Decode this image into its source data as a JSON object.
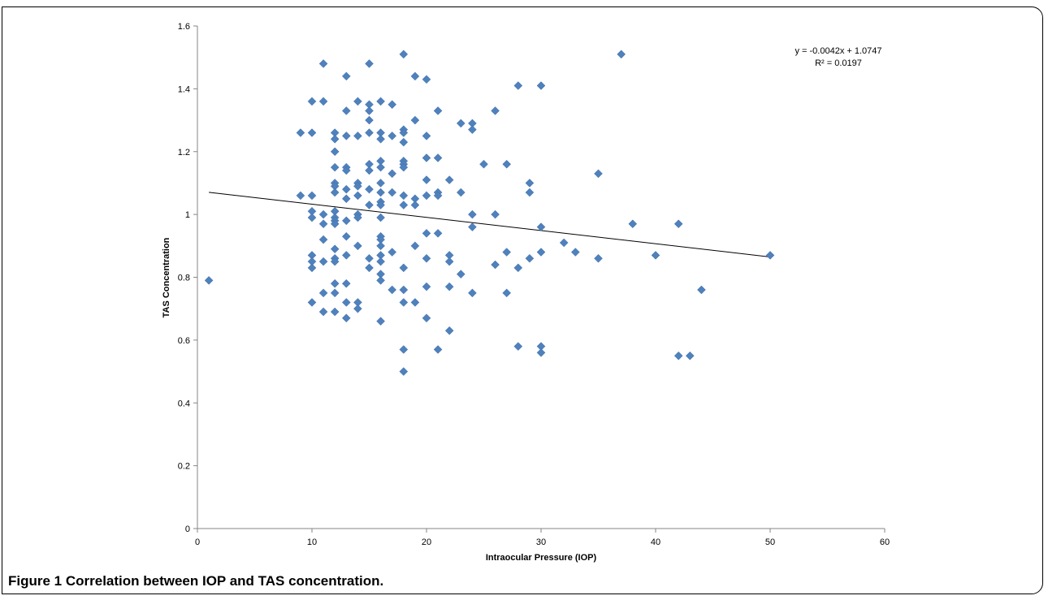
{
  "chart_data": {
    "type": "scatter",
    "xlabel": "Intraocular Pressure (IOP)",
    "ylabel": "TAS Concentration",
    "xlim": [
      0,
      60
    ],
    "ylim": [
      0,
      1.6
    ],
    "x_ticks": [
      "0",
      "10",
      "20",
      "30",
      "40",
      "50",
      "60"
    ],
    "y_ticks": [
      "0",
      "0.2",
      "0.4",
      "0.6",
      "0.8",
      "1",
      "1.2",
      "1.4",
      "1.6"
    ],
    "grid": false,
    "marker_color": "#4F81BD",
    "trendline": {
      "slope": -0.0042,
      "intercept": 1.0747,
      "x_range": [
        1,
        50
      ],
      "color": "#000000",
      "equation": "y = -0.0042x + 1.0747",
      "r_squared": "R² = 0.0197"
    },
    "points": [
      [
        1,
        0.79
      ],
      [
        9,
        1.26
      ],
      [
        9,
        1.06
      ],
      [
        10,
        1.36
      ],
      [
        10,
        1.26
      ],
      [
        10,
        1.06
      ],
      [
        10,
        1.01
      ],
      [
        10,
        0.99
      ],
      [
        10,
        0.87
      ],
      [
        10,
        0.85
      ],
      [
        10,
        0.83
      ],
      [
        10,
        0.72
      ],
      [
        11,
        1.48
      ],
      [
        11,
        1.36
      ],
      [
        11,
        1.0
      ],
      [
        11,
        0.97
      ],
      [
        11,
        0.92
      ],
      [
        11,
        0.85
      ],
      [
        11,
        0.75
      ],
      [
        11,
        0.69
      ],
      [
        12,
        1.26
      ],
      [
        12,
        1.24
      ],
      [
        12,
        1.2
      ],
      [
        12,
        1.15
      ],
      [
        12,
        1.1
      ],
      [
        12,
        1.09
      ],
      [
        12,
        1.07
      ],
      [
        12,
        1.01
      ],
      [
        12,
        0.99
      ],
      [
        12,
        0.98
      ],
      [
        12,
        0.97
      ],
      [
        12,
        0.89
      ],
      [
        12,
        0.86
      ],
      [
        12,
        0.85
      ],
      [
        12,
        0.78
      ],
      [
        12,
        0.75
      ],
      [
        12,
        0.69
      ],
      [
        13,
        1.44
      ],
      [
        13,
        1.33
      ],
      [
        13,
        1.25
      ],
      [
        13,
        1.15
      ],
      [
        13,
        1.14
      ],
      [
        13,
        1.08
      ],
      [
        13,
        1.05
      ],
      [
        13,
        0.98
      ],
      [
        13,
        0.93
      ],
      [
        13,
        0.87
      ],
      [
        13,
        0.78
      ],
      [
        13,
        0.72
      ],
      [
        13,
        0.67
      ],
      [
        14,
        1.36
      ],
      [
        14,
        1.25
      ],
      [
        14,
        1.1
      ],
      [
        14,
        1.09
      ],
      [
        14,
        1.06
      ],
      [
        14,
        1.0
      ],
      [
        14,
        0.99
      ],
      [
        14,
        0.9
      ],
      [
        14,
        0.72
      ],
      [
        14,
        0.7
      ],
      [
        15,
        1.48
      ],
      [
        15,
        1.35
      ],
      [
        15,
        1.33
      ],
      [
        15,
        1.3
      ],
      [
        15,
        1.26
      ],
      [
        15,
        1.16
      ],
      [
        15,
        1.14
      ],
      [
        15,
        1.08
      ],
      [
        15,
        1.03
      ],
      [
        15,
        0.86
      ],
      [
        15,
        0.83
      ],
      [
        16,
        1.36
      ],
      [
        16,
        1.26
      ],
      [
        16,
        1.24
      ],
      [
        16,
        1.17
      ],
      [
        16,
        1.15
      ],
      [
        16,
        1.1
      ],
      [
        16,
        1.07
      ],
      [
        16,
        1.04
      ],
      [
        16,
        1.03
      ],
      [
        16,
        0.99
      ],
      [
        16,
        0.93
      ],
      [
        16,
        0.92
      ],
      [
        16,
        0.9
      ],
      [
        16,
        0.87
      ],
      [
        16,
        0.85
      ],
      [
        16,
        0.81
      ],
      [
        16,
        0.79
      ],
      [
        16,
        0.66
      ],
      [
        17,
        1.35
      ],
      [
        17,
        1.25
      ],
      [
        17,
        1.13
      ],
      [
        17,
        1.07
      ],
      [
        17,
        0.88
      ],
      [
        17,
        0.76
      ],
      [
        18,
        1.51
      ],
      [
        18,
        1.27
      ],
      [
        18,
        1.26
      ],
      [
        18,
        1.23
      ],
      [
        18,
        1.17
      ],
      [
        18,
        1.16
      ],
      [
        18,
        1.15
      ],
      [
        18,
        1.06
      ],
      [
        18,
        1.03
      ],
      [
        18,
        0.83
      ],
      [
        18,
        0.76
      ],
      [
        18,
        0.72
      ],
      [
        18,
        0.57
      ],
      [
        18,
        0.5
      ],
      [
        19,
        1.44
      ],
      [
        19,
        1.3
      ],
      [
        19,
        1.05
      ],
      [
        19,
        1.03
      ],
      [
        19,
        0.9
      ],
      [
        19,
        0.72
      ],
      [
        20,
        1.43
      ],
      [
        20,
        1.25
      ],
      [
        20,
        1.18
      ],
      [
        20,
        1.11
      ],
      [
        20,
        1.06
      ],
      [
        20,
        0.94
      ],
      [
        20,
        0.86
      ],
      [
        20,
        0.77
      ],
      [
        20,
        0.67
      ],
      [
        21,
        1.33
      ],
      [
        21,
        1.18
      ],
      [
        21,
        1.07
      ],
      [
        21,
        1.06
      ],
      [
        21,
        0.94
      ],
      [
        21,
        0.57
      ],
      [
        22,
        1.11
      ],
      [
        22,
        0.87
      ],
      [
        22,
        0.85
      ],
      [
        22,
        0.77
      ],
      [
        22,
        0.63
      ],
      [
        23,
        1.29
      ],
      [
        23,
        1.07
      ],
      [
        23,
        0.81
      ],
      [
        24,
        1.29
      ],
      [
        24,
        1.27
      ],
      [
        24,
        1.0
      ],
      [
        24,
        0.96
      ],
      [
        24,
        0.75
      ],
      [
        25,
        1.16
      ],
      [
        26,
        1.33
      ],
      [
        26,
        1.0
      ],
      [
        26,
        0.84
      ],
      [
        27,
        1.16
      ],
      [
        27,
        0.88
      ],
      [
        27,
        0.75
      ],
      [
        28,
        1.41
      ],
      [
        28,
        0.83
      ],
      [
        28,
        0.58
      ],
      [
        29,
        1.1
      ],
      [
        29,
        1.07
      ],
      [
        29,
        0.86
      ],
      [
        30,
        1.41
      ],
      [
        30,
        0.96
      ],
      [
        30,
        0.88
      ],
      [
        30,
        0.58
      ],
      [
        30,
        0.56
      ],
      [
        32,
        0.91
      ],
      [
        33,
        0.88
      ],
      [
        35,
        1.13
      ],
      [
        35,
        0.86
      ],
      [
        37,
        1.51
      ],
      [
        38,
        0.97
      ],
      [
        40,
        0.87
      ],
      [
        42,
        0.97
      ],
      [
        42,
        0.55
      ],
      [
        43,
        0.55
      ],
      [
        44,
        0.76
      ],
      [
        50,
        0.87
      ]
    ]
  },
  "caption": {
    "label": "Figure 1",
    "text": " Correlation between IOP and TAS concentration."
  }
}
